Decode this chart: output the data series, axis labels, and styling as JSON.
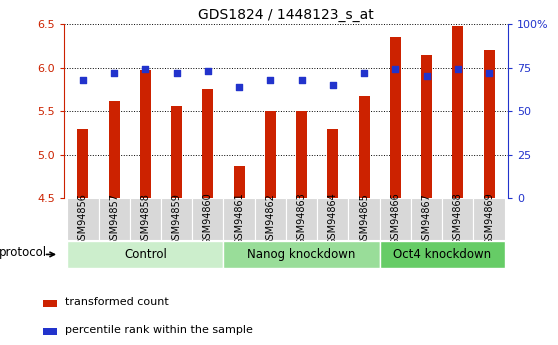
{
  "title": "GDS1824 / 1448123_s_at",
  "samples": [
    "GSM94856",
    "GSM94857",
    "GSM94858",
    "GSM94859",
    "GSM94860",
    "GSM94861",
    "GSM94862",
    "GSM94863",
    "GSM94864",
    "GSM94865",
    "GSM94866",
    "GSM94867",
    "GSM94868",
    "GSM94869"
  ],
  "bar_values": [
    5.3,
    5.62,
    5.97,
    5.56,
    5.75,
    4.87,
    5.5,
    5.5,
    5.3,
    5.67,
    6.35,
    6.15,
    6.48,
    6.2
  ],
  "dot_values": [
    68,
    72,
    74,
    72,
    73,
    64,
    68,
    68,
    65,
    72,
    74,
    70,
    74,
    72
  ],
  "ylim_left": [
    4.5,
    6.5
  ],
  "ylim_right": [
    0,
    100
  ],
  "yticks_left": [
    4.5,
    5.0,
    5.5,
    6.0,
    6.5
  ],
  "yticks_right": [
    0,
    25,
    50,
    75,
    100
  ],
  "ytick_labels_right": [
    "0",
    "25",
    "50",
    "75",
    "100%"
  ],
  "bar_color": "#cc2200",
  "dot_color": "#2233cc",
  "groups": [
    {
      "label": "Control",
      "start": 0,
      "end": 4,
      "color": "#cceecc"
    },
    {
      "label": "Nanog knockdown",
      "start": 5,
      "end": 9,
      "color": "#99dd99"
    },
    {
      "label": "Oct4 knockdown",
      "start": 10,
      "end": 13,
      "color": "#66cc66"
    }
  ],
  "protocol_label": "protocol",
  "legend_bar_label": "transformed count",
  "legend_dot_label": "percentile rank within the sample",
  "bar_width": 0.35,
  "title_fontsize": 10,
  "tick_label_color_left": "#cc2200",
  "tick_label_color_right": "#2233cc",
  "group_label_fontsize": 8.5,
  "protocol_fontsize": 8.5,
  "sample_fontsize": 7,
  "legend_fontsize": 8
}
